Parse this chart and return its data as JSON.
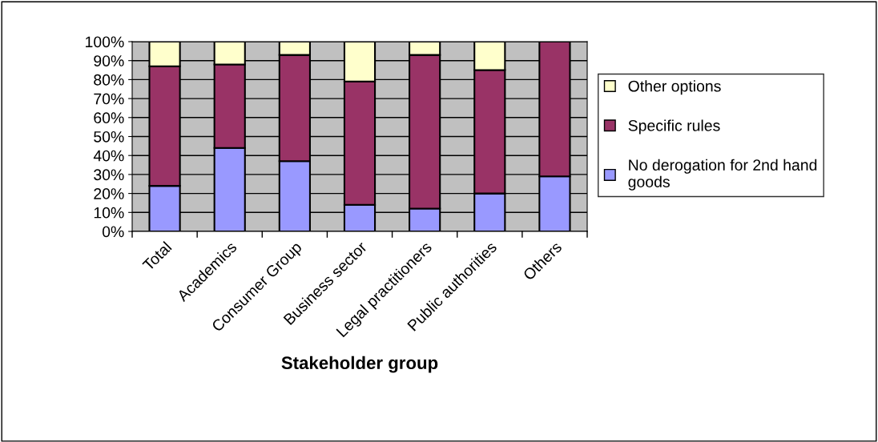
{
  "chart_data": {
    "type": "bar",
    "stacked": true,
    "xlabel": "Stakeholder group",
    "categories": [
      "Total",
      "Academics",
      "Consumer Group",
      "Business sector",
      "Legal practitioners",
      "Public authorities",
      "Others"
    ],
    "series": [
      {
        "name": "No derogation for 2nd hand goods",
        "color": "#9999ff",
        "values": [
          24,
          44,
          37,
          14,
          12,
          20,
          29
        ]
      },
      {
        "name": "Specific rules",
        "color": "#993366",
        "values": [
          63,
          44,
          56,
          65,
          81,
          65,
          71
        ]
      },
      {
        "name": "Other options",
        "color": "#ffffcc",
        "values": [
          13,
          12,
          7,
          21,
          7,
          15,
          null
        ]
      }
    ],
    "ylim": [
      0,
      100
    ],
    "yticks": [
      {
        "value": 0,
        "label": "0%"
      },
      {
        "value": 10,
        "label": "10%"
      },
      {
        "value": 20,
        "label": "20%"
      },
      {
        "value": 30,
        "label": "30%"
      },
      {
        "value": 40,
        "label": "40%"
      },
      {
        "value": 50,
        "label": "50%"
      },
      {
        "value": 60,
        "label": "60%"
      },
      {
        "value": 70,
        "label": "70%"
      },
      {
        "value": 80,
        "label": "80%"
      },
      {
        "value": 90,
        "label": "90%"
      },
      {
        "value": 100,
        "label": "100%"
      }
    ],
    "grid": "y",
    "legend": "right"
  }
}
